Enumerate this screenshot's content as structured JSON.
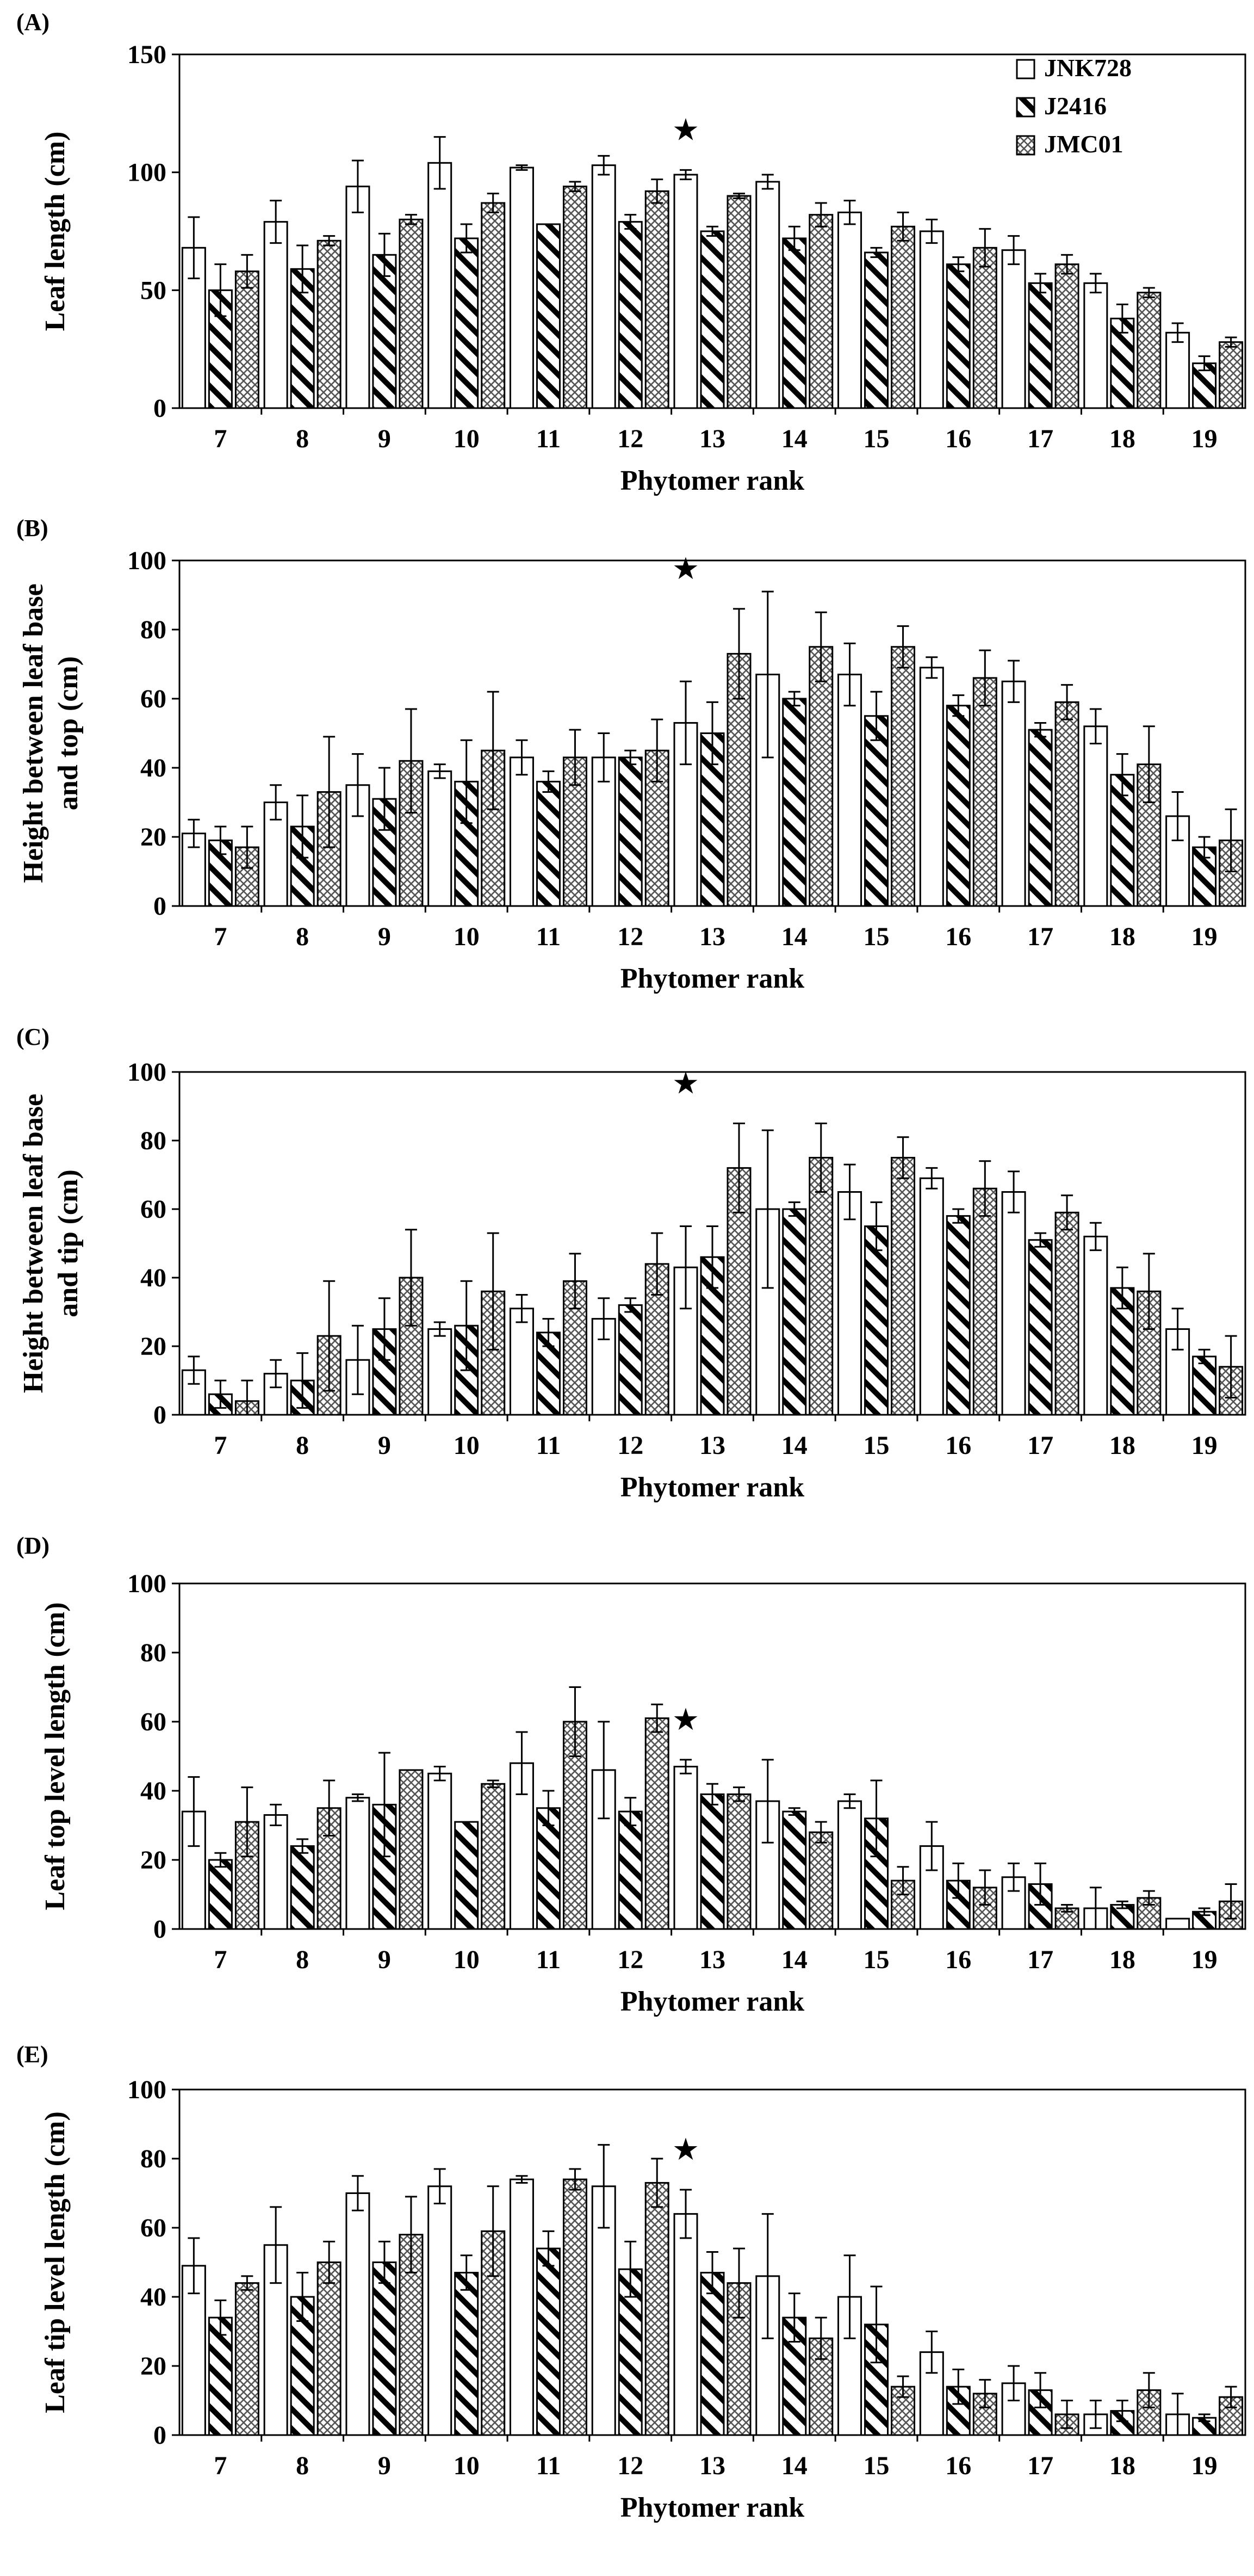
{
  "legend": [
    {
      "name": "JNK728",
      "pattern": "open"
    },
    {
      "name": "J2416",
      "pattern": "hatch"
    },
    {
      "name": "JMC01",
      "pattern": "cross"
    }
  ],
  "star_glyph": "★",
  "chart_data": [
    {
      "type": "bar",
      "panel_label": "(A)",
      "ylabel": [
        "Leaf length (cm)"
      ],
      "xlabel": "Phytomer rank",
      "categories": [
        "7",
        "8",
        "9",
        "10",
        "11",
        "12",
        "13",
        "14",
        "15",
        "16",
        "17",
        "18",
        "19"
      ],
      "ylim": [
        0,
        150
      ],
      "yticks": [
        0,
        50,
        100,
        150
      ],
      "star_at": "13",
      "series": [
        {
          "name": "JNK728",
          "values": [
            68,
            79,
            94,
            104,
            102,
            103,
            99,
            96,
            83,
            75,
            67,
            53,
            32
          ],
          "errors": [
            13,
            9,
            11,
            11,
            1,
            4,
            2,
            3,
            5,
            5,
            6,
            4,
            4
          ]
        },
        {
          "name": "J2416",
          "values": [
            50,
            59,
            65,
            72,
            78,
            79,
            75,
            72,
            66,
            61,
            53,
            38,
            19
          ],
          "errors": [
            11,
            10,
            9,
            6,
            0,
            3,
            2,
            5,
            2,
            3,
            4,
            6,
            3
          ]
        },
        {
          "name": "JMC01",
          "values": [
            58,
            71,
            80,
            87,
            94,
            92,
            90,
            82,
            77,
            68,
            61,
            49,
            28
          ],
          "errors": [
            7,
            2,
            2,
            4,
            2,
            5,
            1,
            5,
            6,
            8,
            4,
            2,
            2
          ]
        }
      ]
    },
    {
      "type": "bar",
      "panel_label": "(B)",
      "ylabel": [
        "Height between leaf  base",
        "and top (cm)"
      ],
      "xlabel": "Phytomer rank",
      "categories": [
        "7",
        "8",
        "9",
        "10",
        "11",
        "12",
        "13",
        "14",
        "15",
        "16",
        "17",
        "18",
        "19"
      ],
      "ylim": [
        0,
        100
      ],
      "yticks": [
        0,
        20,
        40,
        60,
        80,
        100
      ],
      "star_at": "13",
      "series": [
        {
          "name": "JNK728",
          "values": [
            21,
            30,
            35,
            39,
            43,
            43,
            53,
            67,
            67,
            69,
            65,
            52,
            26
          ],
          "errors": [
            4,
            5,
            9,
            2,
            5,
            7,
            12,
            24,
            9,
            3,
            6,
            5,
            7
          ]
        },
        {
          "name": "J2416",
          "values": [
            19,
            23,
            31,
            36,
            36,
            43,
            50,
            60,
            55,
            58,
            51,
            38,
            17
          ],
          "errors": [
            4,
            9,
            9,
            12,
            3,
            2,
            9,
            2,
            7,
            3,
            2,
            6,
            3
          ]
        },
        {
          "name": "JMC01",
          "values": [
            17,
            33,
            42,
            45,
            43,
            45,
            73,
            75,
            75,
            66,
            59,
            41,
            19
          ],
          "errors": [
            6,
            16,
            15,
            17,
            8,
            9,
            13,
            10,
            6,
            8,
            5,
            11,
            9
          ]
        }
      ]
    },
    {
      "type": "bar",
      "panel_label": "(C)",
      "ylabel": [
        "Height between leaf  base",
        "and tip (cm)"
      ],
      "xlabel": "Phytomer rank",
      "categories": [
        "7",
        "8",
        "9",
        "10",
        "11",
        "12",
        "13",
        "14",
        "15",
        "16",
        "17",
        "18",
        "19"
      ],
      "ylim": [
        0,
        100
      ],
      "yticks": [
        0,
        20,
        40,
        60,
        80,
        100
      ],
      "star_at": "13",
      "series": [
        {
          "name": "JNK728",
          "values": [
            13,
            12,
            16,
            25,
            31,
            28,
            43,
            60,
            65,
            69,
            65,
            52,
            25
          ],
          "errors": [
            4,
            4,
            10,
            2,
            4,
            6,
            12,
            23,
            8,
            3,
            6,
            4,
            6
          ]
        },
        {
          "name": "J2416",
          "values": [
            6,
            10,
            25,
            26,
            24,
            32,
            46,
            60,
            55,
            58,
            51,
            37,
            17
          ],
          "errors": [
            4,
            8,
            9,
            13,
            4,
            2,
            9,
            2,
            7,
            2,
            2,
            6,
            2
          ]
        },
        {
          "name": "JMC01",
          "values": [
            4,
            23,
            40,
            36,
            39,
            44,
            72,
            75,
            75,
            66,
            59,
            36,
            14
          ],
          "errors": [
            6,
            16,
            14,
            17,
            8,
            9,
            13,
            10,
            6,
            8,
            5,
            11,
            9
          ]
        }
      ]
    },
    {
      "type": "bar",
      "panel_label": "(D)",
      "ylabel": [
        "Leaf top level length (cm)"
      ],
      "xlabel": "Phytomer rank",
      "categories": [
        "7",
        "8",
        "9",
        "10",
        "11",
        "12",
        "13",
        "14",
        "15",
        "16",
        "17",
        "18",
        "19"
      ],
      "ylim": [
        0,
        100
      ],
      "yticks": [
        0,
        20,
        40,
        60,
        80,
        100
      ],
      "star_at": "13",
      "series": [
        {
          "name": "JNK728",
          "values": [
            34,
            33,
            38,
            45,
            48,
            46,
            47,
            37,
            37,
            24,
            15,
            6,
            3
          ],
          "errors": [
            10,
            3,
            1,
            2,
            9,
            14,
            2,
            12,
            2,
            7,
            4,
            6,
            0
          ]
        },
        {
          "name": "J2416",
          "values": [
            20,
            24,
            36,
            31,
            35,
            34,
            39,
            34,
            32,
            14,
            13,
            7,
            5
          ],
          "errors": [
            2,
            2,
            15,
            0,
            5,
            4,
            3,
            1,
            11,
            5,
            6,
            1,
            1
          ]
        },
        {
          "name": "JMC01",
          "values": [
            31,
            35,
            46,
            42,
            60,
            61,
            39,
            28,
            14,
            12,
            6,
            9,
            8
          ],
          "errors": [
            10,
            8,
            0,
            1,
            10,
            4,
            2,
            3,
            4,
            5,
            1,
            2,
            5
          ]
        }
      ]
    },
    {
      "type": "bar",
      "panel_label": "(E)",
      "ylabel": [
        "Leaf tip level length (cm)"
      ],
      "xlabel": "Phytomer rank",
      "categories": [
        "7",
        "8",
        "9",
        "10",
        "11",
        "12",
        "13",
        "14",
        "15",
        "16",
        "17",
        "18",
        "19"
      ],
      "ylim": [
        0,
        100
      ],
      "yticks": [
        0,
        20,
        40,
        60,
        80,
        100
      ],
      "star_at": "13",
      "series": [
        {
          "name": "JNK728",
          "values": [
            49,
            55,
            70,
            72,
            74,
            72,
            64,
            46,
            40,
            24,
            15,
            6,
            6
          ],
          "errors": [
            8,
            11,
            5,
            5,
            1,
            12,
            7,
            18,
            12,
            6,
            5,
            4,
            6
          ]
        },
        {
          "name": "J2416",
          "values": [
            34,
            40,
            50,
            47,
            54,
            48,
            47,
            34,
            32,
            14,
            13,
            7,
            5
          ],
          "errors": [
            5,
            7,
            6,
            5,
            5,
            8,
            6,
            7,
            11,
            5,
            5,
            3,
            1
          ]
        },
        {
          "name": "JMC01",
          "values": [
            44,
            50,
            58,
            59,
            74,
            73,
            44,
            28,
            14,
            12,
            6,
            13,
            11
          ],
          "errors": [
            2,
            6,
            11,
            13,
            3,
            7,
            10,
            6,
            3,
            4,
            4,
            5,
            3
          ]
        }
      ]
    }
  ]
}
